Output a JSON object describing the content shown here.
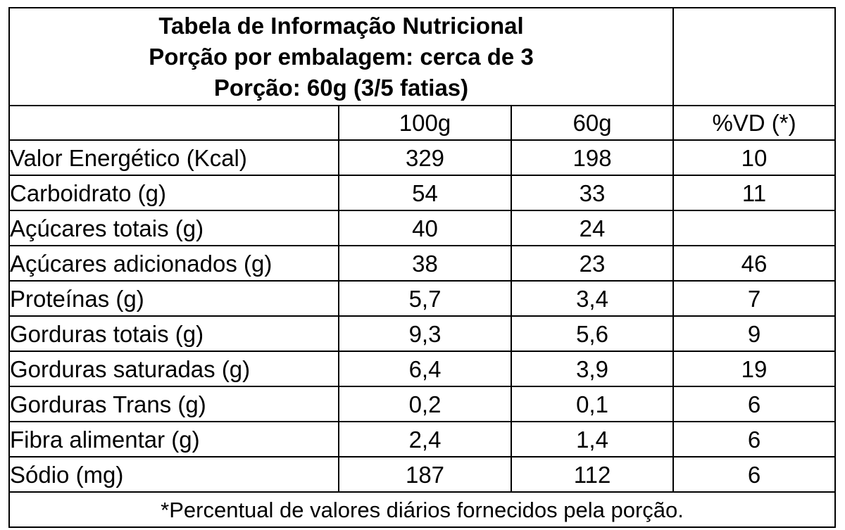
{
  "title": {
    "line1": "Tabela de Informação Nutricional",
    "line2": "Porção por embalagem: cerca de 3",
    "line3": "Porção: 60g (3/5 fatias)"
  },
  "columns": {
    "col_100g": "100g",
    "col_60g": "60g",
    "col_vd": "%VD (*)"
  },
  "rows": [
    {
      "name": "Valor Energético (Kcal)",
      "v100": "329",
      "v60": "198",
      "vd": "10"
    },
    {
      "name": "Carboidrato (g)",
      "v100": "54",
      "v60": "33",
      "vd": "11"
    },
    {
      "name": "Açúcares totais (g)",
      "v100": "40",
      "v60": "24",
      "vd": ""
    },
    {
      "name": "Açúcares adicionados (g)",
      "v100": "38",
      "v60": "23",
      "vd": "46"
    },
    {
      "name": "Proteínas (g)",
      "v100": "5,7",
      "v60": "3,4",
      "vd": "7"
    },
    {
      "name": "Gorduras totais (g)",
      "v100": "9,3",
      "v60": "5,6",
      "vd": "9"
    },
    {
      "name": "Gorduras saturadas (g)",
      "v100": "6,4",
      "v60": "3,9",
      "vd": "19"
    },
    {
      "name": "Gorduras Trans (g)",
      "v100": "0,2",
      "v60": "0,1",
      "vd": "6"
    },
    {
      "name": "Fibra alimentar (g)",
      "v100": "2,4",
      "v60": "1,4",
      "vd": "6"
    },
    {
      "name": "Sódio (mg)",
      "v100": "187",
      "v60": "112",
      "vd": "6"
    }
  ],
  "footnote": "*Percentual de valores diários fornecidos pela porção."
}
